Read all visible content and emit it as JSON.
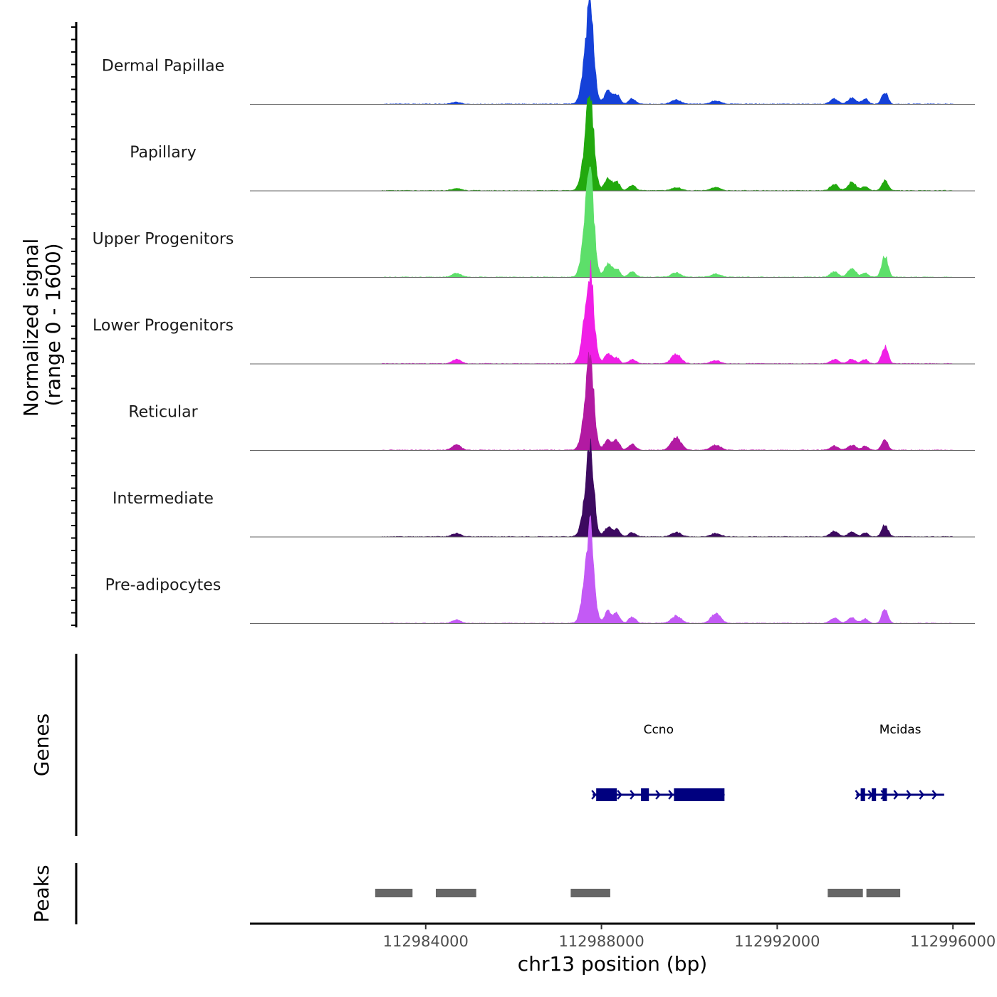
{
  "chart_data": {
    "type": "area",
    "title": "",
    "ylabel_line1": "Normalized signal",
    "ylabel_line2": "(range 0 - 1600)",
    "yrange": [
      0,
      1600
    ],
    "xlabel": "chr13 position (bp)",
    "xlim": [
      112980000,
      112996500
    ],
    "xticks": [
      112984000,
      112988000,
      112992000,
      112996000
    ],
    "xtick_labels": [
      "112984000",
      "112988000",
      "112992000",
      "112996000"
    ],
    "series": [
      {
        "name": "Dermal Papillae",
        "color": "#1541D8"
      },
      {
        "name": "Papillary",
        "color": "#22A90E"
      },
      {
        "name": "Upper Progenitors",
        "color": "#5DDF6A"
      },
      {
        "name": "Lower Progenitors",
        "color": "#F01FE6"
      },
      {
        "name": "Reticular",
        "color": "#B21AA2"
      },
      {
        "name": "Intermediate",
        "color": "#3D0A60"
      },
      {
        "name": "Pre-adipocytes",
        "color": "#C35AF5"
      }
    ],
    "signal_peaks": {
      "positions": [
        112987700,
        112987760,
        112988150,
        112988350,
        112988700,
        112989700,
        112990600,
        112993300,
        112993700,
        112994000,
        112994450,
        112984700
      ],
      "widths": [
        110,
        70,
        80,
        70,
        80,
        110,
        110,
        90,
        90,
        70,
        70,
        100
      ],
      "heights": [
        [
          0.6,
          0.42,
          0.12,
          0.09,
          0.05,
          0.04,
          0.03,
          0.05,
          0.06,
          0.05,
          0.11,
          0.02
        ],
        [
          0.58,
          0.4,
          0.11,
          0.08,
          0.05,
          0.03,
          0.03,
          0.06,
          0.08,
          0.04,
          0.1,
          0.02
        ],
        [
          0.66,
          0.42,
          0.12,
          0.08,
          0.05,
          0.04,
          0.03,
          0.05,
          0.08,
          0.04,
          0.2,
          0.04
        ],
        [
          0.6,
          0.35,
          0.1,
          0.05,
          0.04,
          0.09,
          0.03,
          0.04,
          0.04,
          0.04,
          0.16,
          0.04
        ],
        [
          0.55,
          0.37,
          0.1,
          0.09,
          0.06,
          0.12,
          0.05,
          0.04,
          0.05,
          0.04,
          0.1,
          0.05
        ],
        [
          0.5,
          0.39,
          0.09,
          0.07,
          0.04,
          0.04,
          0.03,
          0.05,
          0.04,
          0.04,
          0.11,
          0.03
        ],
        [
          0.6,
          0.38,
          0.12,
          0.09,
          0.06,
          0.07,
          0.09,
          0.05,
          0.05,
          0.04,
          0.13,
          0.03
        ]
      ]
    },
    "genes_label": "Genes",
    "genes": [
      {
        "name": "Ccno",
        "start": 112987800,
        "end": 112990800,
        "strand": "+",
        "exons": [
          [
            112987880,
            112988350
          ],
          [
            112988900,
            112989080
          ],
          [
            112989650,
            112990800
          ]
        ]
      },
      {
        "name": "Mcidas",
        "start": 112993800,
        "end": 112995800,
        "strand": "+",
        "exons": [
          [
            112993900,
            112994000
          ],
          [
            112994150,
            112994250
          ],
          [
            112994400,
            112994460
          ]
        ]
      }
    ],
    "peaks_label": "Peaks",
    "peaks": [
      [
        112982850,
        112983700
      ],
      [
        112984230,
        112985150
      ],
      [
        112987300,
        112988200
      ],
      [
        112993150,
        112993950
      ],
      [
        112994030,
        112994800
      ]
    ],
    "peak_color": "#666666",
    "gene_color": "#00007F"
  }
}
